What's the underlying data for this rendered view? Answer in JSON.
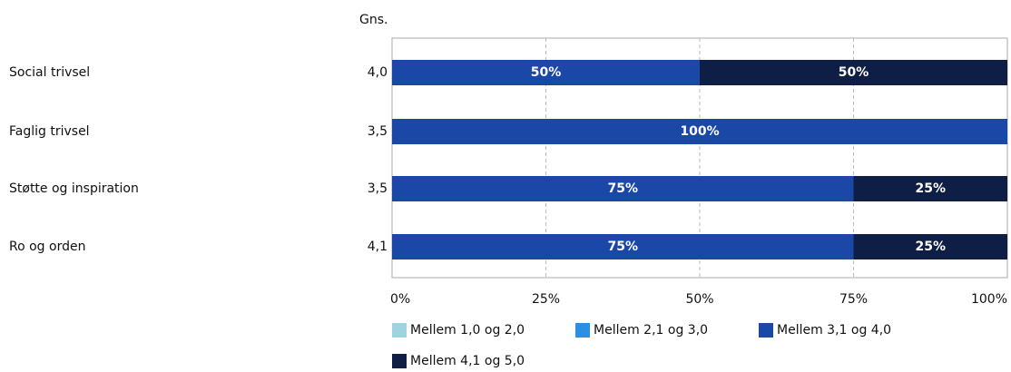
{
  "chart_data": {
    "type": "stacked_bar_horizontal",
    "categories": [
      "Social trivsel",
      "Faglig trivsel",
      "Støtte og inspiration",
      "Ro og orden"
    ],
    "averages_header": "Gns.",
    "averages": [
      "4,0",
      "3,5",
      "3,5",
      "4,1"
    ],
    "series": [
      {
        "name": "Mellem 1,0 og 2,0",
        "color": "#9fd3df",
        "values": [
          0,
          0,
          0,
          0
        ]
      },
      {
        "name": "Mellem 2,1 og 3,0",
        "color": "#2b8fe3",
        "values": [
          0,
          0,
          0,
          0
        ]
      },
      {
        "name": "Mellem 3,1 og 4,0",
        "color": "#1b47a6",
        "values": [
          50,
          100,
          75,
          75
        ],
        "value_labels": [
          "50%",
          "100%",
          "75%",
          "75%"
        ]
      },
      {
        "name": "Mellem 4,1 og 5,0",
        "color": "#0e1e44",
        "values": [
          50,
          0,
          25,
          25
        ],
        "value_labels": [
          "50%",
          null,
          "25%",
          "25%"
        ]
      }
    ],
    "xlim": [
      0,
      100
    ],
    "xticks": [
      {
        "value": 0,
        "label": "0%"
      },
      {
        "value": 25,
        "label": "25%"
      },
      {
        "value": 50,
        "label": "50%"
      },
      {
        "value": 75,
        "label": "75%"
      },
      {
        "value": 100,
        "label": "100%"
      }
    ],
    "grid": true
  }
}
